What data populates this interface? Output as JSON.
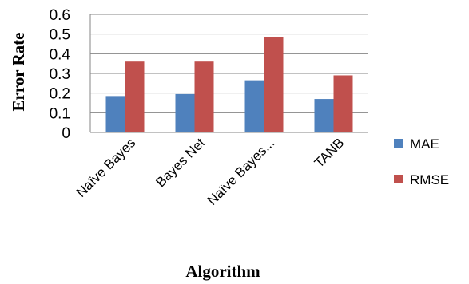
{
  "chart_data": {
    "type": "bar",
    "categories": [
      "Naïve Bayes",
      "Bayes Net",
      "Naïve Bayes...",
      "TANB"
    ],
    "series": [
      {
        "name": "MAE",
        "values": [
          0.185,
          0.195,
          0.265,
          0.17
        ],
        "color": "#4f81bd"
      },
      {
        "name": "RMSE",
        "values": [
          0.36,
          0.36,
          0.485,
          0.29
        ],
        "color": "#c0504d"
      }
    ],
    "xlabel": "Algorithm",
    "ylabel": "Error Rate",
    "ylim": [
      0,
      0.6
    ],
    "yticks": [
      "0",
      "0.1",
      "0.2",
      "0.3",
      "0.4",
      "0.5",
      "0.6"
    ],
    "grid": true,
    "legend_position": "right"
  }
}
